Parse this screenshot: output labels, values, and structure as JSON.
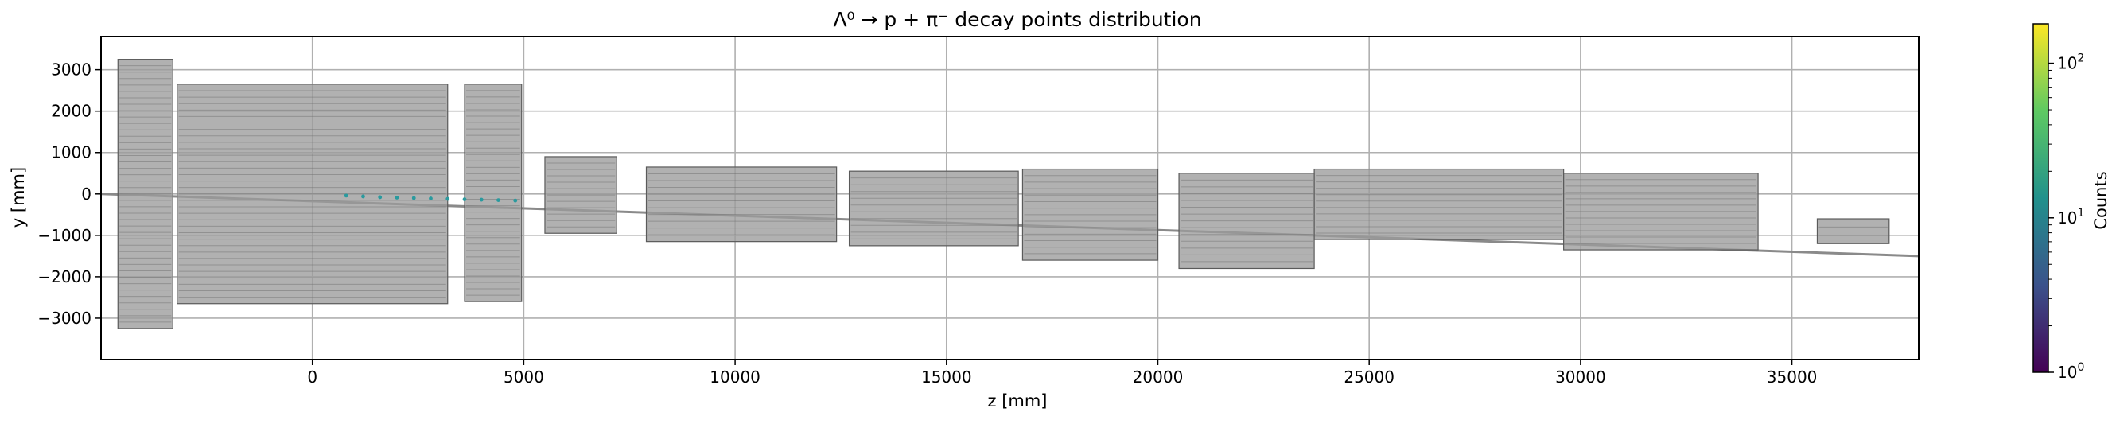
{
  "chart_data": {
    "type": "scatter",
    "title": "Λ⁰ → p + π⁻ decay points distribution",
    "xlabel": "z [mm]",
    "ylabel": "y [mm]",
    "xlim": [
      -5000,
      38000
    ],
    "ylim": [
      -4000,
      3800
    ],
    "xticks": [
      0,
      5000,
      10000,
      15000,
      20000,
      25000,
      30000,
      35000
    ],
    "yticks": [
      -3000,
      -2000,
      -1000,
      0,
      1000,
      2000,
      3000
    ],
    "grid": true,
    "log_scale": false,
    "series": [
      {
        "points": [
          {
            "x": 800,
            "y": -40
          },
          {
            "x": 1200,
            "y": -60
          },
          {
            "x": 1600,
            "y": -80
          },
          {
            "x": 2000,
            "y": -90
          },
          {
            "x": 2400,
            "y": -100
          },
          {
            "x": 2800,
            "y": -110
          },
          {
            "x": 3200,
            "y": -120
          },
          {
            "x": 3600,
            "y": -130
          },
          {
            "x": 4000,
            "y": -140
          },
          {
            "x": 4400,
            "y": -150
          },
          {
            "x": 4800,
            "y": -160
          }
        ]
      }
    ],
    "detector_outline": {
      "color": "#9b9b9b",
      "components": [
        {
          "z0": -4600,
          "z1": -3300,
          "y0": -3250,
          "y1": 3250
        },
        {
          "z0": -3200,
          "z1": 3200,
          "y0": -2650,
          "y1": 2650
        },
        {
          "z0": 3600,
          "z1": 4950,
          "y0": -2600,
          "y1": 2650
        },
        {
          "z0": 5500,
          "z1": 7200,
          "y0": -950,
          "y1": 900
        },
        {
          "z0": 7900,
          "z1": 12400,
          "y0": -1150,
          "y1": 650
        },
        {
          "z0": 12700,
          "z1": 16700,
          "y0": -1250,
          "y1": 550
        },
        {
          "z0": 16800,
          "z1": 20000,
          "y0": -1600,
          "y1": 600
        },
        {
          "z0": 20500,
          "z1": 23700,
          "y0": -1800,
          "y1": 500
        },
        {
          "z0": 23700,
          "z1": 29600,
          "y0": -1100,
          "y1": 600
        },
        {
          "z0": 29600,
          "z1": 34200,
          "y0": -1350,
          "y1": 500
        },
        {
          "z0": 35600,
          "z1": 37300,
          "y0": -1200,
          "y1": -600
        }
      ]
    },
    "colorbar": {
      "label": "Counts",
      "scale": "log",
      "range": [
        1,
        180
      ],
      "ticks": [
        {
          "value": 1,
          "base": "10",
          "exp": "0"
        },
        {
          "value": 10,
          "base": "10",
          "exp": "1"
        },
        {
          "value": 100,
          "base": "10",
          "exp": "2"
        }
      ],
      "colors": [
        "#440154",
        "#3b528b",
        "#21918c",
        "#5ec962",
        "#fde725"
      ]
    }
  }
}
